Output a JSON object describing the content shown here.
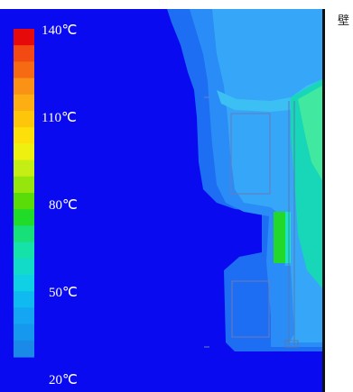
{
  "legend": {
    "colors": [
      "#e60a0a",
      "#f24a12",
      "#f76a14",
      "#fa9216",
      "#fcae12",
      "#fdc60a",
      "#fde00a",
      "#eef010",
      "#c4ee14",
      "#96e60e",
      "#5adc08",
      "#20dc28",
      "#18e078",
      "#14e2a8",
      "#12dcc8",
      "#10d0e6",
      "#0ebaf0",
      "#14a6f2",
      "#1698ee",
      "#1a8ae8"
    ],
    "labels": [
      {
        "text": "140℃",
        "level": 140
      },
      {
        "text": "110℃",
        "level": 110
      },
      {
        "text": "80℃",
        "level": 80
      },
      {
        "text": "50℃",
        "level": 50
      },
      {
        "text": "20℃",
        "level": 20
      }
    ]
  },
  "side_label": "壁"
}
